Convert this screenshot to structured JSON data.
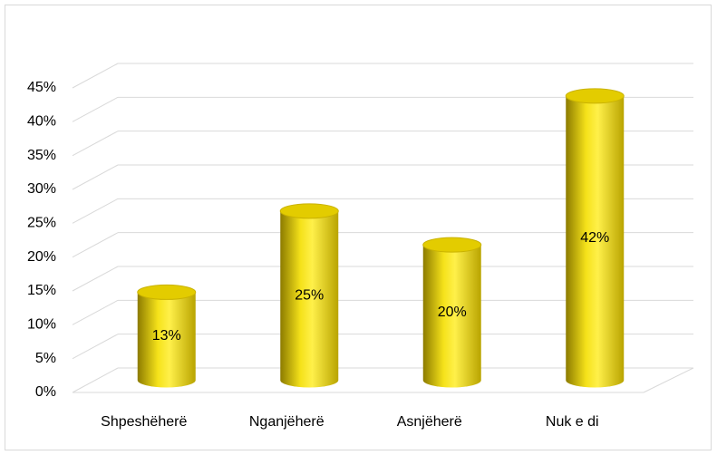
{
  "chart_data": {
    "type": "bar3d",
    "categories": [
      "Shpeshëherë",
      "Nganjëherë",
      "Asnjëherë",
      "Nuk e di"
    ],
    "values": [
      13,
      25,
      20,
      42
    ],
    "value_labels": [
      "13%",
      "25%",
      "20%",
      "42%"
    ],
    "color": "#f2dc00",
    "ylim": [
      0,
      45
    ],
    "yticks": [
      {
        "value": 0,
        "label": "0%"
      },
      {
        "value": 5,
        "label": "5%"
      },
      {
        "value": 10,
        "label": "10%"
      },
      {
        "value": 15,
        "label": "15%"
      },
      {
        "value": 20,
        "label": "20%"
      },
      {
        "value": 25,
        "label": "25%"
      },
      {
        "value": 30,
        "label": "30%"
      },
      {
        "value": 35,
        "label": "35%"
      },
      {
        "value": 40,
        "label": "40%"
      },
      {
        "value": 45,
        "label": "45%"
      }
    ],
    "grid": true
  }
}
